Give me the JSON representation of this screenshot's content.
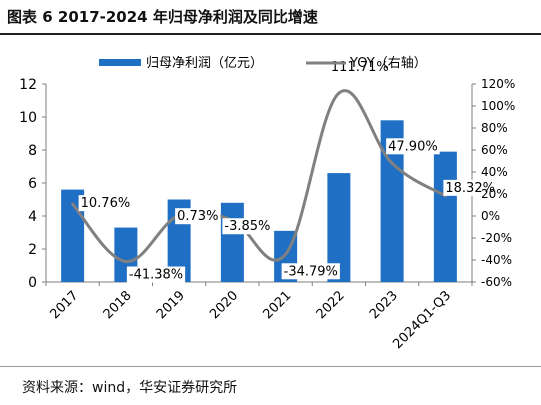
{
  "figure": {
    "title": "图表 6 2017-2024 年归母净利润及同比增速",
    "source": "资料来源：wind，华安证券研究所"
  },
  "colors": {
    "bar": "#1f6fc4",
    "line": "#808080",
    "axis": "#7f7f7f",
    "text": "#000000"
  },
  "chart_data": {
    "type": "bar",
    "categories": [
      "2017",
      "2018",
      "2019",
      "2020",
      "2021",
      "2022",
      "2023",
      "2024Q1-Q3"
    ],
    "series": [
      {
        "name": "归母净利润（亿元）",
        "type": "bar",
        "axis": "left",
        "values": [
          5.6,
          3.3,
          5.0,
          4.8,
          3.1,
          6.6,
          9.8,
          7.9
        ]
      },
      {
        "name": "YOY（右轴）",
        "type": "line",
        "axis": "right",
        "unit": "%",
        "values": [
          10.76,
          -41.38,
          0.73,
          -3.85,
          -34.79,
          111.71,
          47.9,
          18.32
        ],
        "labels": [
          "10.76%",
          "-41.38%",
          "0.73%",
          "-3.85%",
          "-34.79%",
          "111.71%",
          "47.90%",
          "18.32%"
        ]
      }
    ],
    "left_axis": {
      "ylim": [
        0,
        12
      ],
      "ticks": [
        "0",
        "2",
        "4",
        "6",
        "8",
        "10",
        "12"
      ]
    },
    "right_axis": {
      "ylim": [
        -60,
        120
      ],
      "ticks": [
        "-60%",
        "-40%",
        "-20%",
        "0%",
        "20%",
        "40%",
        "60%",
        "80%",
        "100%",
        "120%"
      ]
    },
    "legend": {
      "placement": "top"
    },
    "grid": false
  }
}
